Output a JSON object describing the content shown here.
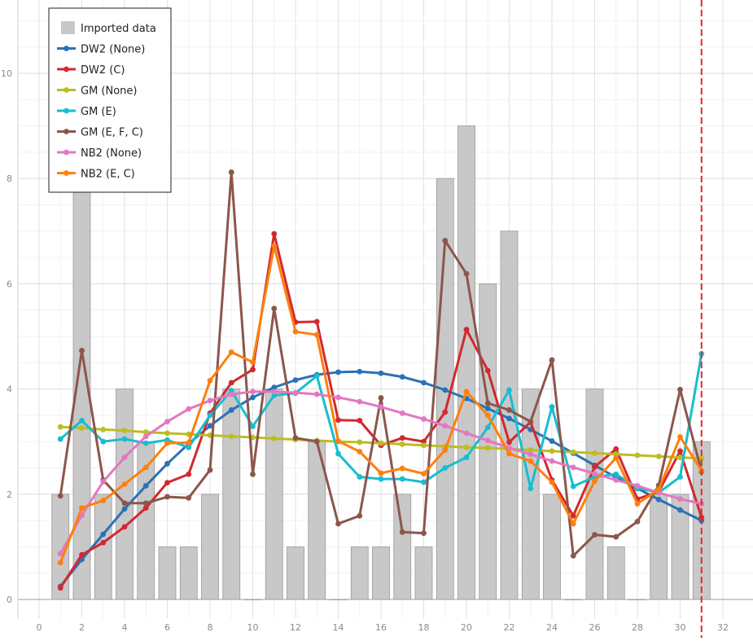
{
  "chart_data": {
    "type": "bar+line",
    "xlim": [
      0,
      32
    ],
    "ylim": [
      0,
      11
    ],
    "xticks": [
      0,
      2,
      4,
      6,
      8,
      10,
      12,
      14,
      16,
      18,
      20,
      22,
      24,
      26,
      28,
      30,
      32
    ],
    "yticks": [
      0,
      2,
      4,
      6,
      8,
      10
    ],
    "grid": true,
    "legend_position": "top-left",
    "vertical_marker": {
      "x": 31,
      "color": "#e8262a",
      "style": "dashed"
    },
    "bars": {
      "name": "Imported data",
      "color": "#c8c8c8",
      "x": [
        1,
        2,
        3,
        4,
        5,
        6,
        7,
        8,
        9,
        10,
        11,
        12,
        13,
        14,
        15,
        16,
        17,
        18,
        19,
        20,
        21,
        22,
        23,
        24,
        25,
        26,
        27,
        28,
        29,
        30,
        31
      ],
      "values": [
        2,
        8,
        2,
        4,
        3,
        1,
        1,
        2,
        4,
        0,
        4,
        1,
        3,
        0,
        1,
        1,
        2,
        1,
        8,
        9,
        6,
        7,
        4,
        2,
        0,
        4,
        1,
        0,
        2,
        2,
        3
      ]
    },
    "series": [
      {
        "name": "DW2 (None)",
        "color": "#2a72b5",
        "x": [
          1,
          2,
          3,
          4,
          5,
          6,
          7,
          8,
          9,
          10,
          11,
          12,
          13,
          14,
          15,
          16,
          17,
          18,
          19,
          20,
          21,
          22,
          23,
          24,
          25,
          26,
          27,
          28,
          29,
          30,
          31
        ],
        "values": [
          0.25,
          0.76,
          1.24,
          1.72,
          2.16,
          2.58,
          2.96,
          3.3,
          3.6,
          3.84,
          4.03,
          4.17,
          4.27,
          4.32,
          4.33,
          4.3,
          4.23,
          4.12,
          3.98,
          3.82,
          3.63,
          3.44,
          3.23,
          3.01,
          2.78,
          2.55,
          2.32,
          2.11,
          1.9,
          1.7,
          1.5
        ]
      },
      {
        "name": "DW2 (C)",
        "color": "#d1292e",
        "x": [
          1,
          2,
          3,
          4,
          5,
          6,
          7,
          8,
          9,
          10,
          11,
          12,
          13,
          14,
          15,
          16,
          17,
          18,
          19,
          20,
          21,
          22,
          23,
          24,
          25,
          26,
          27,
          28,
          29,
          30,
          31
        ],
        "values": [
          0.22,
          0.85,
          1.08,
          1.38,
          1.74,
          2.22,
          2.38,
          3.54,
          4.12,
          4.37,
          6.95,
          5.27,
          5.28,
          3.41,
          3.4,
          2.93,
          3.07,
          3.0,
          3.56,
          5.13,
          4.35,
          2.99,
          3.37,
          2.27,
          1.59,
          2.52,
          2.86,
          1.91,
          2.05,
          2.82,
          1.56
        ]
      },
      {
        "name": "GM (None)",
        "color": "#bcbd22",
        "x": [
          1,
          2,
          3,
          4,
          5,
          6,
          7,
          8,
          9,
          10,
          11,
          12,
          13,
          14,
          15,
          16,
          17,
          18,
          19,
          20,
          21,
          22,
          23,
          24,
          25,
          26,
          27,
          28,
          29,
          30,
          31
        ],
        "values": [
          3.28,
          3.26,
          3.23,
          3.21,
          3.18,
          3.16,
          3.14,
          3.12,
          3.1,
          3.08,
          3.06,
          3.04,
          3.02,
          3.0,
          2.99,
          2.97,
          2.95,
          2.93,
          2.91,
          2.89,
          2.88,
          2.86,
          2.84,
          2.82,
          2.8,
          2.78,
          2.76,
          2.74,
          2.72,
          2.7,
          2.68
        ]
      },
      {
        "name": "GM (E)",
        "color": "#17becf",
        "x": [
          1,
          2,
          3,
          4,
          5,
          6,
          7,
          8,
          9,
          10,
          11,
          12,
          13,
          14,
          15,
          16,
          17,
          18,
          19,
          20,
          21,
          22,
          23,
          24,
          25,
          26,
          27,
          28,
          29,
          30,
          31
        ],
        "values": [
          3.05,
          3.4,
          3.0,
          3.05,
          2.97,
          3.03,
          2.89,
          3.5,
          3.97,
          3.29,
          3.88,
          3.92,
          4.25,
          2.77,
          2.33,
          2.29,
          2.29,
          2.23,
          2.5,
          2.7,
          3.27,
          3.98,
          2.11,
          3.66,
          2.15,
          2.33,
          2.38,
          2.12,
          2.03,
          2.33,
          4.67
        ]
      },
      {
        "name": "GM (E, F, C)",
        "color": "#8c564b",
        "x": [
          1,
          2,
          3,
          4,
          5,
          6,
          7,
          8,
          9,
          10,
          11,
          12,
          13,
          14,
          15,
          16,
          17,
          18,
          19,
          20,
          21,
          22,
          23,
          24,
          25,
          26,
          27,
          28,
          29,
          30,
          31
        ],
        "values": [
          1.97,
          4.73,
          2.27,
          1.83,
          1.83,
          1.95,
          1.93,
          2.46,
          8.12,
          2.38,
          5.53,
          3.07,
          3.0,
          1.44,
          1.59,
          3.83,
          1.28,
          1.26,
          6.82,
          6.19,
          3.73,
          3.6,
          3.38,
          4.55,
          0.83,
          1.23,
          1.19,
          1.48,
          2.17,
          3.99,
          2.43
        ]
      },
      {
        "name": "NB2 (None)",
        "color": "#e377c2",
        "x": [
          1,
          2,
          3,
          4,
          5,
          6,
          7,
          8,
          9,
          10,
          11,
          12,
          13,
          14,
          15,
          16,
          17,
          18,
          19,
          20,
          21,
          22,
          23,
          24,
          25,
          26,
          27,
          28,
          29,
          30,
          31
        ],
        "values": [
          0.87,
          1.6,
          2.24,
          2.7,
          3.1,
          3.38,
          3.62,
          3.78,
          3.9,
          3.95,
          3.95,
          3.93,
          3.9,
          3.84,
          3.76,
          3.66,
          3.54,
          3.43,
          3.3,
          3.16,
          3.02,
          2.88,
          2.76,
          2.63,
          2.51,
          2.39,
          2.27,
          2.16,
          2.03,
          1.91,
          1.82
        ]
      },
      {
        "name": "NB2 (E, C)",
        "color": "#ff7f0e",
        "x": [
          1,
          2,
          3,
          4,
          5,
          6,
          7,
          8,
          9,
          10,
          11,
          12,
          13,
          14,
          15,
          16,
          17,
          18,
          19,
          20,
          21,
          22,
          23,
          24,
          25,
          26,
          27,
          28,
          29,
          30,
          31
        ],
        "values": [
          0.7,
          1.74,
          1.88,
          2.19,
          2.51,
          2.97,
          2.98,
          4.16,
          4.7,
          4.51,
          6.72,
          5.09,
          5.03,
          3.01,
          2.81,
          2.4,
          2.49,
          2.39,
          2.84,
          3.95,
          3.5,
          2.77,
          2.63,
          2.23,
          1.44,
          2.25,
          2.69,
          1.82,
          2.09,
          3.09,
          2.45
        ]
      }
    ]
  }
}
